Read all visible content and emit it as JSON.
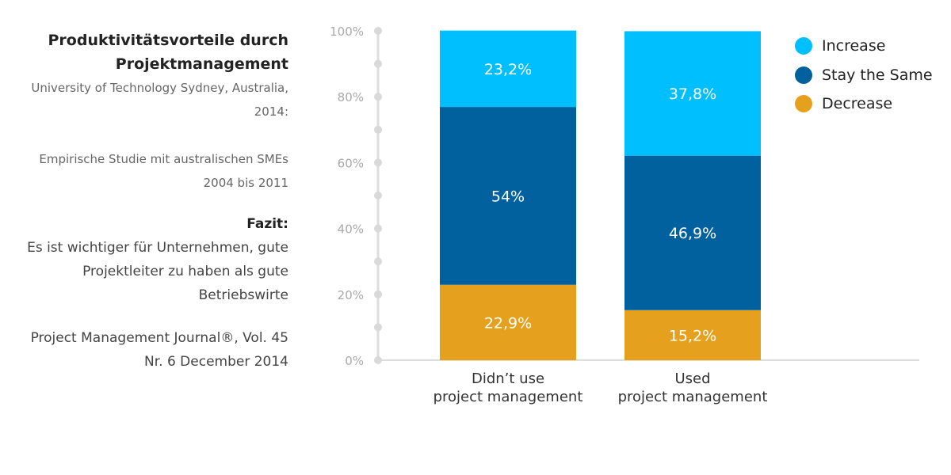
{
  "side": {
    "title": "Produktivitätsvorteile durch Projektmanagement",
    "source1": "University of Technology Sydney, Australia, 2014:",
    "study": "Empirische Studie mit australischen SMEs 2004 bis 2011",
    "fazit_label": "Fazit:",
    "fazit": "Es ist wichtiger für Unternehmen, gute Projektleiter zu haben als gute Betriebswirte",
    "source2": "Project Management Journal®, Vol. 45 Nr. 6 December 2014"
  },
  "chart_data": {
    "type": "bar",
    "stacked": true,
    "categories": [
      "Didn’t use project management",
      "Used project management"
    ],
    "category_lines": [
      [
        "Didn’t use",
        "project management"
      ],
      [
        "Used",
        "project management"
      ]
    ],
    "series": [
      {
        "name": "Decrease",
        "color": "#E5A11E",
        "values": [
          22.9,
          15.2
        ],
        "labels": [
          "22,9%",
          "15,2%"
        ]
      },
      {
        "name": "Stay the Same",
        "color": "#00619E",
        "values": [
          54,
          46.9
        ],
        "labels": [
          "54%",
          "46,9%"
        ]
      },
      {
        "name": "Increase",
        "color": "#00BFFF",
        "values": [
          23.2,
          37.8
        ],
        "labels": [
          "23,2%",
          "37,8%"
        ]
      }
    ],
    "ylim": [
      0,
      100
    ],
    "yticks": [
      "0%",
      "20%",
      "40%",
      "60%",
      "80%",
      "100%"
    ],
    "legend_position": "top-right"
  }
}
